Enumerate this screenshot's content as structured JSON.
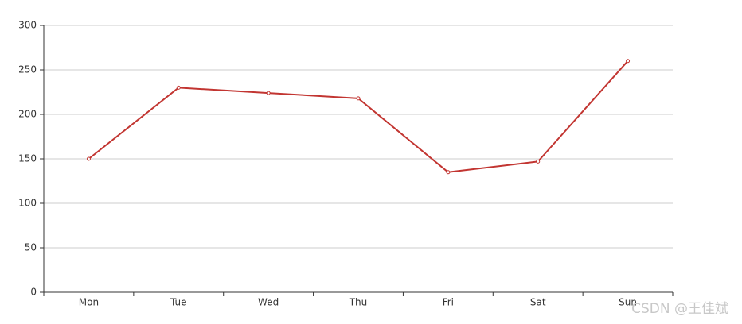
{
  "chart_data": {
    "type": "line",
    "categories": [
      "Mon",
      "Tue",
      "Wed",
      "Thu",
      "Fri",
      "Sat",
      "Sun"
    ],
    "series": [
      {
        "name": "",
        "color": "#c23531",
        "values": [
          150,
          230,
          224,
          218,
          135,
          147,
          260
        ]
      }
    ],
    "ylim": [
      0,
      300
    ],
    "yticks": [
      0,
      50,
      100,
      150,
      200,
      250,
      300
    ],
    "grid": true
  },
  "watermark": "CSDN @王佳斌"
}
